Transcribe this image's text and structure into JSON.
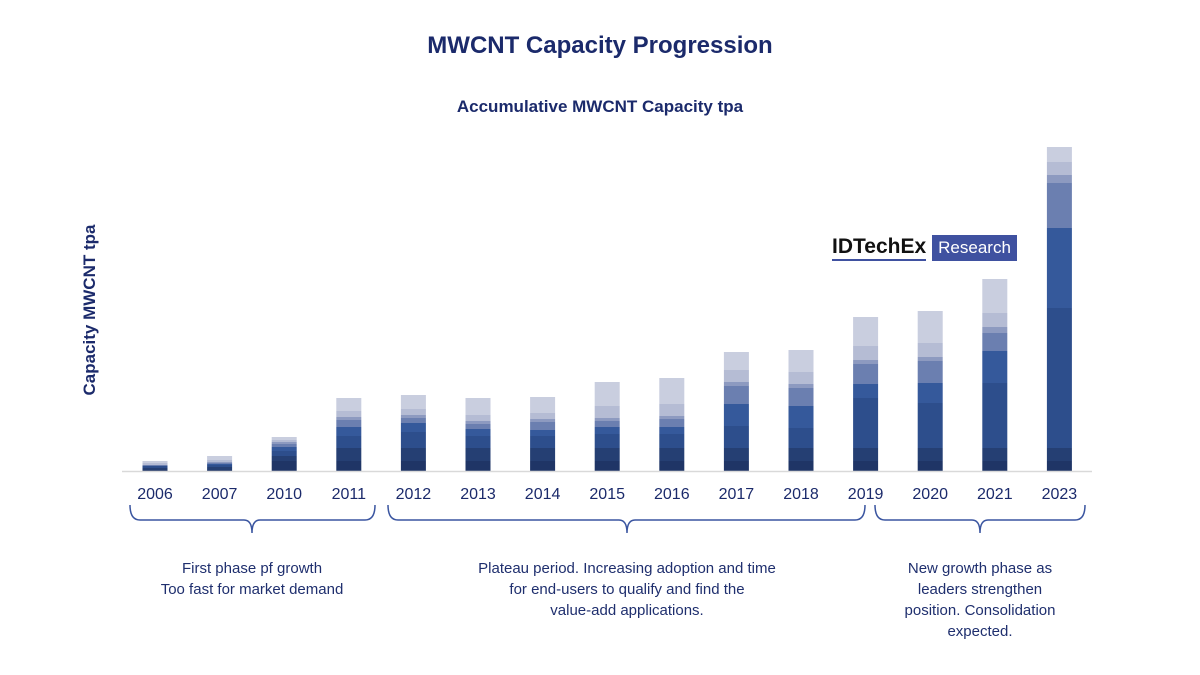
{
  "chart_data": {
    "type": "bar",
    "stacked": true,
    "title": "MWCNT Capacity Progression",
    "subtitle": "Accumulative MWCNT Capacity tpa",
    "xlabel": "",
    "ylabel": "Capacity MWCNT tpa",
    "y_ticks_shown": false,
    "grid": false,
    "categories": [
      "2006",
      "2007",
      "2010",
      "2011",
      "2012",
      "2013",
      "2014",
      "2015",
      "2016",
      "2017",
      "2018",
      "2019",
      "2020",
      "2021",
      "2023"
    ],
    "series": [
      {
        "color": "#1f3566",
        "values": [
          1,
          1,
          10,
          10,
          10,
          10,
          10,
          10,
          10,
          10,
          10,
          10,
          10,
          10,
          10
        ]
      },
      {
        "color": "#253f73",
        "values": [
          2,
          3,
          5,
          13,
          13,
          13,
          13,
          13,
          13,
          13,
          13,
          13,
          13,
          13,
          13
        ]
      },
      {
        "color": "#2d4e8c",
        "values": [
          2,
          2,
          5,
          12,
          16,
          12,
          12,
          14,
          14,
          22,
          20,
          50,
          45,
          65,
          140
        ]
      },
      {
        "color": "#35599b",
        "values": [
          0,
          1,
          4,
          9,
          9,
          7,
          6,
          7,
          7,
          22,
          22,
          14,
          20,
          32,
          80
        ]
      },
      {
        "color": "#6b7fb0",
        "values": [
          1,
          1,
          3,
          7,
          5,
          5,
          8,
          6,
          8,
          18,
          18,
          20,
          22,
          18,
          45
        ]
      },
      {
        "color": "#8d9ac0",
        "values": [
          0,
          1,
          2,
          3,
          3,
          3,
          3,
          3,
          3,
          4,
          4,
          4,
          4,
          6,
          8
        ]
      },
      {
        "color": "#b5bcd4",
        "values": [
          2,
          2,
          2,
          6,
          6,
          6,
          6,
          12,
          12,
          12,
          12,
          14,
          14,
          14,
          13
        ]
      },
      {
        "color": "#c9cedf",
        "values": [
          2,
          4,
          3,
          13,
          14,
          17,
          16,
          24,
          26,
          18,
          22,
          29,
          32,
          34,
          15
        ]
      }
    ],
    "annotations": [
      {
        "from": "2006",
        "to": "2011",
        "lines": [
          "First phase pf growth",
          "Too fast for market demand"
        ]
      },
      {
        "from": "2012",
        "to": "2019",
        "lines": [
          "Plateau period. Increasing adoption and time",
          "for end-users to qualify and find the",
          "value-add applications."
        ]
      },
      {
        "from": "2019",
        "to": "2023",
        "lines": [
          "New growth phase as",
          "leaders strengthen",
          "position. Consolidation",
          "expected."
        ]
      }
    ]
  },
  "logo": {
    "brand": "IDTechEx",
    "tag": "Research",
    "color": "#3f51a0"
  }
}
